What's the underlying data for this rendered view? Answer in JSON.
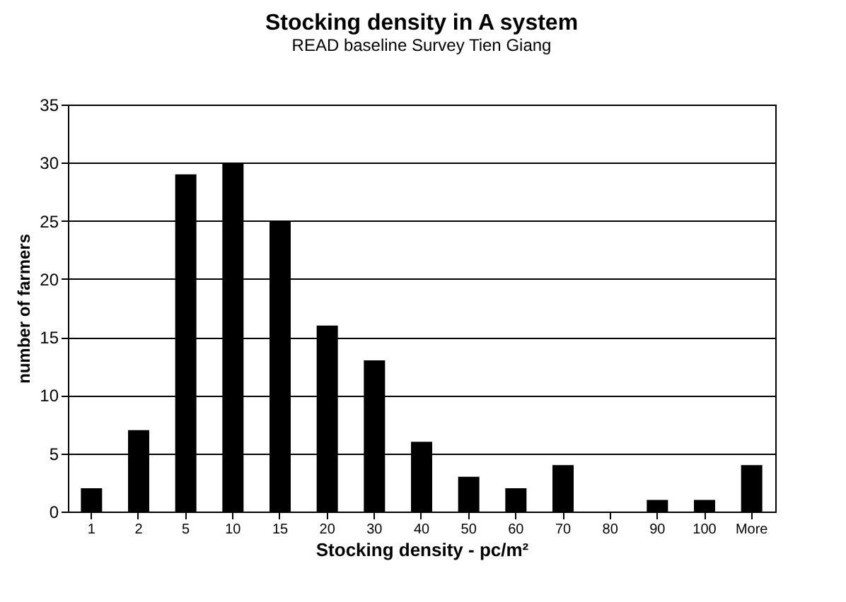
{
  "chart_data": {
    "type": "bar",
    "title": "Stocking density in A system",
    "subtitle": "READ baseline Survey Tien Giang",
    "xlabel": "Stocking density - pc/m²",
    "ylabel": "number of farmers",
    "categories": [
      "1",
      "2",
      "5",
      "10",
      "15",
      "20",
      "30",
      "40",
      "50",
      "60",
      "70",
      "80",
      "90",
      "100",
      "More"
    ],
    "values": [
      2,
      7,
      29,
      30,
      25,
      16,
      13,
      6,
      3,
      2,
      4,
      0,
      1,
      1,
      4
    ],
    "color": "#000000",
    "ylim": [
      0,
      35
    ],
    "yticks": [
      0,
      5,
      10,
      15,
      20,
      25,
      30,
      35
    ],
    "grid": "y"
  }
}
